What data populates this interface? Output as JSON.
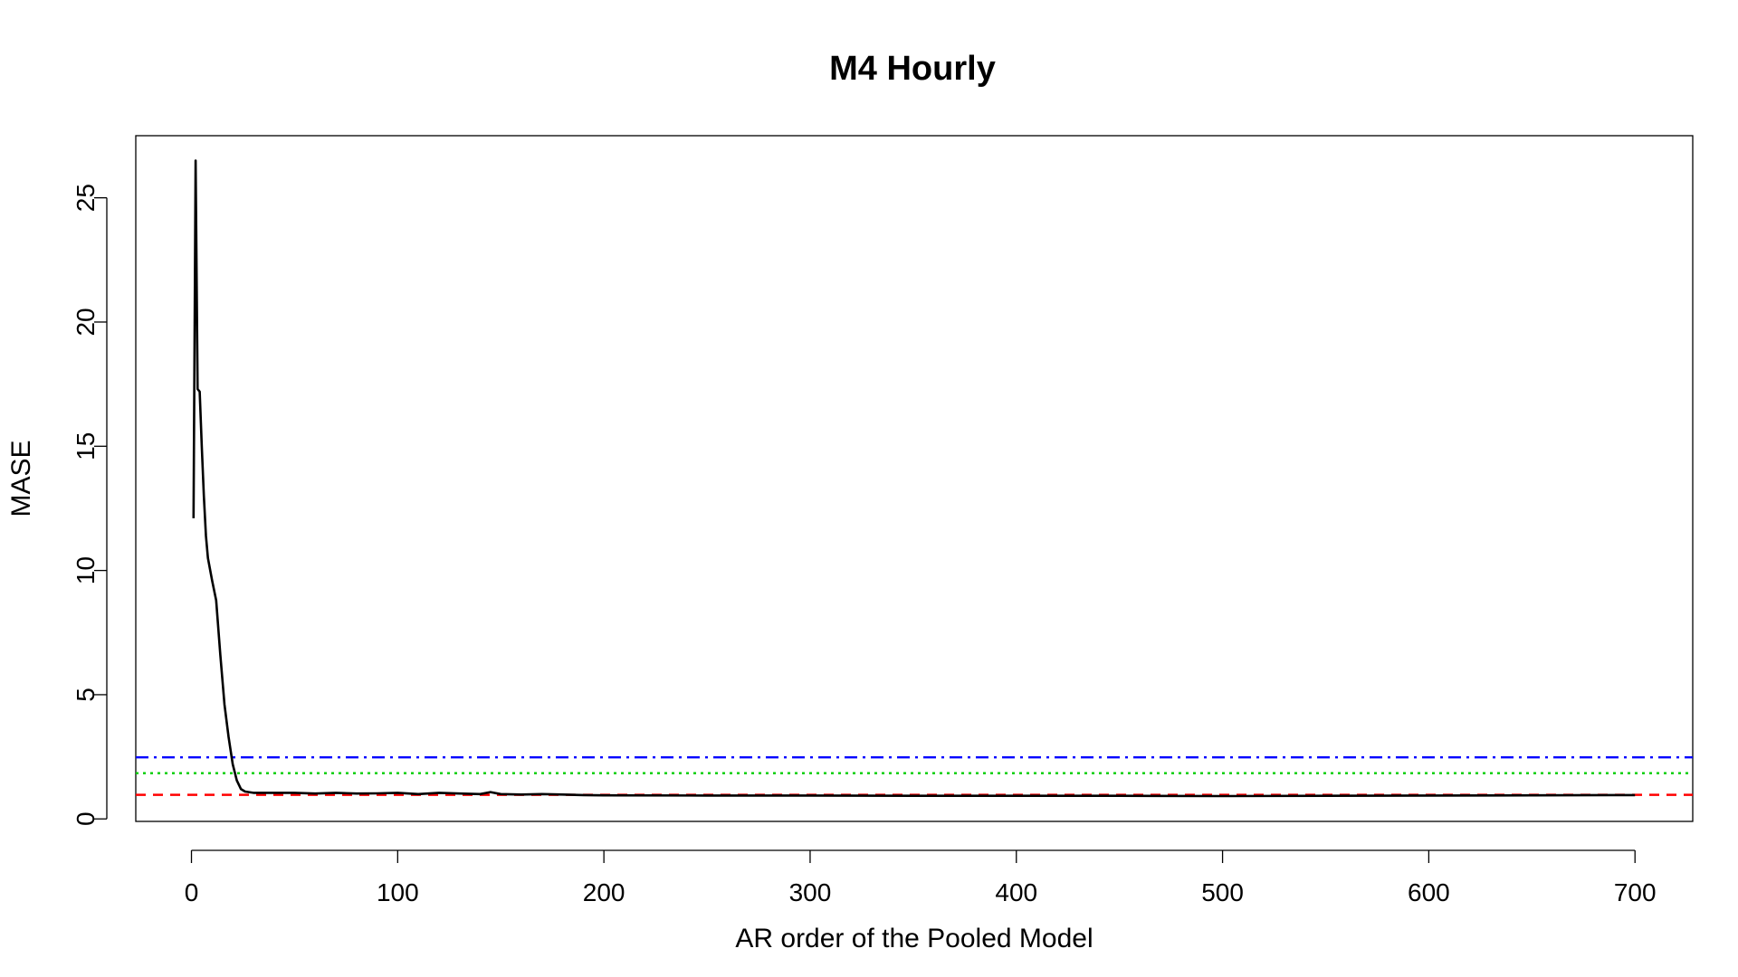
{
  "chart_data": {
    "type": "line",
    "title": "M4 Hourly",
    "xlabel": "AR order of the Pooled Model",
    "ylabel": "MASE",
    "xlim": [
      -27,
      728
    ],
    "ylim": [
      -0.1,
      27.5
    ],
    "x_ticks": [
      0,
      100,
      200,
      300,
      400,
      500,
      600,
      700
    ],
    "y_ticks": [
      0,
      5,
      10,
      15,
      20,
      25
    ],
    "grid": false,
    "legend": "none",
    "series": [
      {
        "color": "#000000",
        "style": "solid",
        "x": [
          1,
          2,
          3,
          4,
          5,
          6,
          7,
          8,
          10,
          12,
          14,
          16,
          18,
          20,
          22,
          24,
          26,
          30,
          40,
          50,
          60,
          70,
          80,
          90,
          100,
          110,
          120,
          130,
          140,
          145,
          150,
          160,
          170,
          180,
          190,
          200,
          250,
          300,
          350,
          400,
          450,
          500,
          550,
          600,
          650,
          700
        ],
        "y": [
          12.1,
          26.5,
          17.3,
          17.2,
          15.0,
          13.0,
          11.4,
          10.5,
          9.6,
          8.8,
          6.6,
          4.6,
          3.3,
          2.2,
          1.55,
          1.2,
          1.1,
          1.05,
          1.05,
          1.05,
          1.02,
          1.05,
          1.02,
          1.03,
          1.05,
          1.0,
          1.05,
          1.02,
          1.0,
          1.08,
          1.0,
          0.98,
          1.0,
          0.98,
          0.96,
          0.95,
          0.94,
          0.94,
          0.93,
          0.93,
          0.93,
          0.92,
          0.93,
          0.94,
          0.95,
          0.96
        ]
      }
    ],
    "reference_lines": [
      {
        "y": 2.48,
        "color": "#0000ff",
        "style": "dashdot"
      },
      {
        "y": 1.84,
        "color": "#00cd00",
        "style": "dotted"
      },
      {
        "y": 0.97,
        "color": "#ff0000",
        "style": "dashed"
      }
    ]
  }
}
